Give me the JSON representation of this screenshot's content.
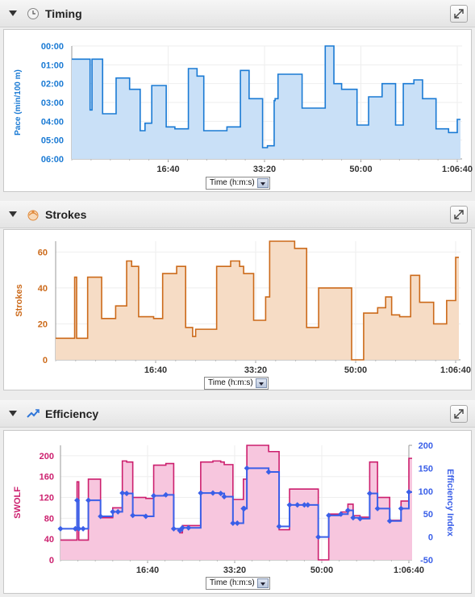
{
  "panels": [
    {
      "title": "Timing",
      "icon": "clock-icon"
    },
    {
      "title": "Strokes",
      "icon": "swimmer-icon"
    },
    {
      "title": "Efficiency",
      "icon": "trend-icon"
    }
  ],
  "time_selector": "Time (h:m:s)",
  "colors": {
    "pace": "#1a7ad4",
    "pace_fill": "#c9e0f7",
    "strokes": "#cc6a1a",
    "strokes_fill": "#f6dcc5",
    "swolf": "#cc1f6e",
    "swolf_fill": "#f7c6de",
    "eff": "#3a5fe8"
  },
  "chart_data": [
    {
      "type": "area",
      "title": "",
      "ylabel": "Pace (min/100 m)",
      "xlabel": "",
      "x_ticks": [
        "16:40",
        "33:20",
        "50:00",
        "1:06:40"
      ],
      "y_ticks": [
        "00:00",
        "01:00",
        "02:00",
        "03:00",
        "04:00",
        "05:00",
        "06:00"
      ],
      "ylim": [
        6,
        0
      ],
      "xlim": [
        0,
        4000
      ],
      "grid": true,
      "x": [
        0,
        170,
        190,
        210,
        260,
        320,
        460,
        600,
        660,
        710,
        760,
        830,
        980,
        1070,
        1210,
        1300,
        1370,
        1400,
        1470,
        1610,
        1750,
        1840,
        1880,
        1980,
        2030,
        2100,
        2110,
        2140,
        2390,
        2510,
        2630,
        2720,
        2800,
        2840,
        2960,
        3080,
        3220,
        3300,
        3360,
        3440,
        3550,
        3640,
        3780,
        3910,
        4000
      ],
      "values": [
        0.7,
        0.7,
        3.4,
        0.7,
        0.7,
        3.6,
        1.7,
        2.3,
        2.3,
        4.5,
        4.1,
        2.1,
        4.3,
        4.4,
        1.2,
        1.6,
        4.5,
        4.5,
        4.5,
        4.3,
        1.3,
        2.8,
        2.8,
        5.4,
        5.3,
        2.9,
        2.8,
        1.5,
        3.3,
        3.3,
        0.0,
        2.0,
        2.3,
        2.3,
        4.2,
        2.7,
        2.0,
        2.0,
        4.2,
        2.0,
        1.8,
        2.8,
        4.4,
        4.6,
        3.9
      ]
    },
    {
      "type": "area",
      "title": "",
      "ylabel": "Strokes",
      "xlabel": "",
      "x_ticks": [
        "16:40",
        "33:20",
        "50:00",
        "1:06:40"
      ],
      "y_ticks": [
        "0",
        "20",
        "40",
        "60"
      ],
      "ylim": [
        0,
        66
      ],
      "xlim": [
        0,
        4000
      ],
      "grid": true,
      "x": [
        0,
        170,
        190,
        210,
        260,
        320,
        460,
        600,
        660,
        710,
        760,
        830,
        980,
        1070,
        1210,
        1300,
        1370,
        1400,
        1470,
        1610,
        1750,
        1840,
        1880,
        1980,
        2030,
        2100,
        2110,
        2140,
        2390,
        2510,
        2630,
        2720,
        2800,
        2840,
        2960,
        3080,
        3220,
        3300,
        3360,
        3440,
        3550,
        3640,
        3780,
        3910,
        4000
      ],
      "values": [
        12,
        12,
        46,
        12,
        12,
        46,
        23,
        30,
        30,
        55,
        52,
        24,
        23,
        48,
        52,
        18,
        13,
        17,
        17,
        52,
        55,
        52,
        48,
        22,
        22,
        35,
        35,
        66,
        62,
        18,
        40,
        40,
        40,
        40,
        0,
        26,
        29,
        35,
        25,
        24,
        47,
        32,
        20,
        33,
        57
      ]
    },
    {
      "type": "line",
      "title": "",
      "xlabel": "",
      "x_ticks": [
        "16:40",
        "33:20",
        "50:00",
        "1:06:40"
      ],
      "xlim": [
        0,
        4000
      ],
      "grid": true,
      "series": [
        {
          "name": "SWOLF",
          "axis": "left",
          "ylabel": "SWOLF",
          "y_ticks": [
            "0",
            "40",
            "80",
            "120",
            "160",
            "200"
          ],
          "ylim": [
            0,
            220
          ],
          "x": [
            0,
            170,
            190,
            210,
            260,
            320,
            460,
            600,
            660,
            710,
            760,
            830,
            980,
            1070,
            1210,
            1300,
            1370,
            1400,
            1470,
            1610,
            1750,
            1840,
            1880,
            1980,
            2030,
            2100,
            2110,
            2140,
            2390,
            2510,
            2630,
            2720,
            2800,
            2840,
            2960,
            3080,
            3220,
            3300,
            3360,
            3440,
            3550,
            3640,
            3780,
            3910,
            4000
          ],
          "values": [
            38,
            38,
            150,
            38,
            38,
            155,
            81,
            100,
            100,
            190,
            188,
            120,
            118,
            182,
            185,
            60,
            52,
            66,
            66,
            188,
            190,
            188,
            183,
            116,
            116,
            155,
            155,
            220,
            208,
            58,
            136,
            136,
            136,
            136,
            0,
            88,
            92,
            107,
            85,
            82,
            188,
            120,
            76,
            113,
            195
          ]
        },
        {
          "name": "Efficiency Index",
          "axis": "right",
          "ylabel": "Efficiency Index",
          "y_ticks": [
            "-50",
            "0",
            "50",
            "100",
            "150",
            "200"
          ],
          "ylim": [
            -50,
            200
          ],
          "x": [
            0,
            170,
            190,
            210,
            260,
            320,
            460,
            600,
            660,
            710,
            760,
            830,
            980,
            1070,
            1210,
            1300,
            1370,
            1400,
            1470,
            1610,
            1750,
            1840,
            1880,
            1980,
            2030,
            2100,
            2110,
            2140,
            2390,
            2510,
            2630,
            2720,
            2800,
            2840,
            2960,
            3080,
            3220,
            3300,
            3360,
            3440,
            3550,
            3640,
            3780,
            3910,
            4000
          ],
          "values": [
            18,
            18,
            80,
            18,
            18,
            80,
            45,
            55,
            55,
            96,
            95,
            47,
            45,
            90,
            92,
            18,
            14,
            20,
            20,
            96,
            96,
            95,
            88,
            30,
            30,
            62,
            62,
            150,
            142,
            23,
            70,
            70,
            70,
            70,
            0,
            47,
            50,
            58,
            42,
            40,
            95,
            62,
            35,
            62,
            98
          ]
        }
      ]
    }
  ]
}
